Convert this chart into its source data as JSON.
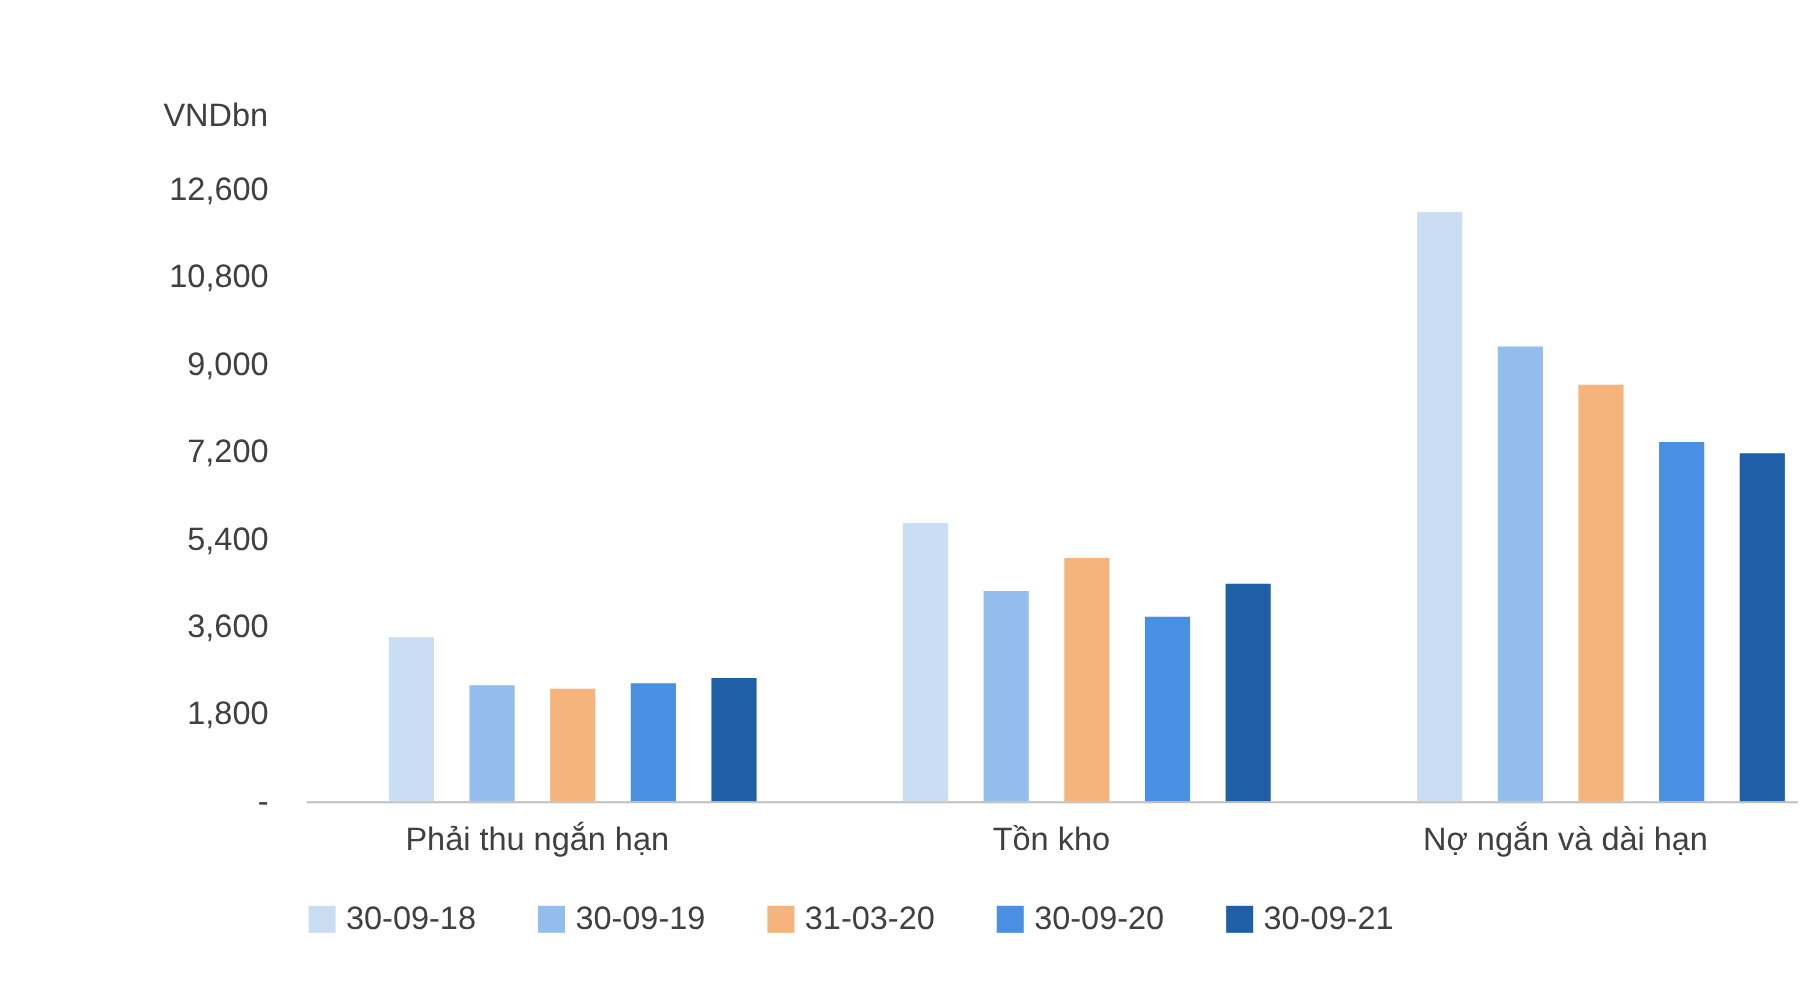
{
  "chart_data": {
    "type": "bar",
    "ylabel": "VNDbn",
    "categories": [
      "Phải thu ngắn hạn",
      "Tồn kho",
      "Nợ ngắn và dài hạn"
    ],
    "series": [
      {
        "name": "30-09-18",
        "color": "#c9ddf3",
        "values": [
          3380,
          5730,
          12140
        ]
      },
      {
        "name": "30-09-19",
        "color": "#93bdec",
        "values": [
          2390,
          4330,
          9370
        ]
      },
      {
        "name": "31-03-20",
        "color": "#f5b47c",
        "values": [
          2320,
          5010,
          8580
        ]
      },
      {
        "name": "30-09-20",
        "color": "#4a90e2",
        "values": [
          2430,
          3800,
          7400
        ]
      },
      {
        "name": "30-09-21",
        "color": "#1f5fa8",
        "values": [
          2540,
          4480,
          7170
        ]
      }
    ],
    "ylim": [
      0,
      12600
    ],
    "yticks": [
      {
        "value": 0,
        "label": "-"
      },
      {
        "value": 1800,
        "label": "1,800"
      },
      {
        "value": 3600,
        "label": "3,600"
      },
      {
        "value": 5400,
        "label": "5,400"
      },
      {
        "value": 7200,
        "label": "7,200"
      },
      {
        "value": 9000,
        "label": "9,000"
      },
      {
        "value": 10800,
        "label": "10,800"
      },
      {
        "value": 12600,
        "label": "12,600"
      }
    ],
    "grid": false,
    "legend": "bottom"
  }
}
